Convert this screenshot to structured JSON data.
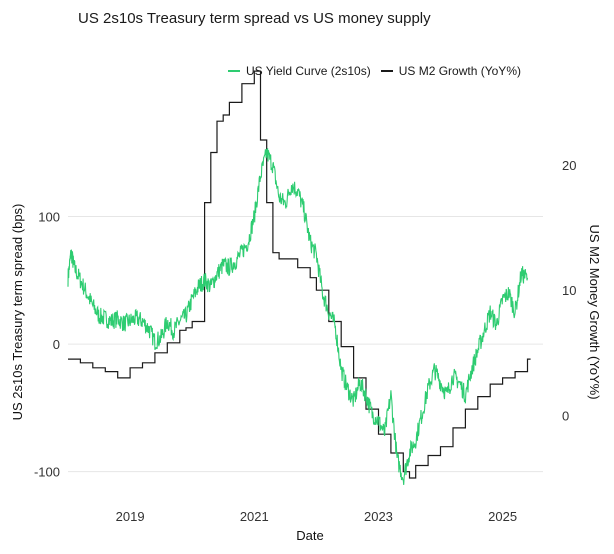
{
  "chart_data": {
    "type": "line",
    "title": "US 2s10s Treasury term spread vs US money supply",
    "xlabel": "Date",
    "ylabel_left": "US 2s10s Treasury term spread (bps)",
    "ylabel_right": "US M2 Money Growth (YoY%)",
    "x_ticks": [
      "2019",
      "2021",
      "2023",
      "2025"
    ],
    "y_left_ticks": [
      "-100",
      "0",
      "100"
    ],
    "y_right_ticks": [
      "0",
      "10",
      "20"
    ],
    "ylim_left": [
      -105,
      160
    ],
    "ylim_right": [
      -5,
      22
    ],
    "xlim": [
      2018.0,
      2025.65
    ],
    "grid": true,
    "legend_position": "top",
    "series": [
      {
        "name": "US Yield Curve (2s10s)",
        "color": "#2ecc71",
        "axis": "left",
        "x": [
          2018.0,
          2018.05,
          2018.1,
          2018.2,
          2018.3,
          2018.4,
          2018.5,
          2018.6,
          2018.7,
          2018.8,
          2018.9,
          2019.0,
          2019.1,
          2019.2,
          2019.3,
          2019.4,
          2019.5,
          2019.6,
          2019.7,
          2019.8,
          2019.9,
          2020.0,
          2020.1,
          2020.2,
          2020.3,
          2020.4,
          2020.5,
          2020.6,
          2020.7,
          2020.8,
          2020.9,
          2021.0,
          2021.1,
          2021.2,
          2021.3,
          2021.4,
          2021.5,
          2021.6,
          2021.7,
          2021.8,
          2021.9,
          2022.0,
          2022.1,
          2022.2,
          2022.3,
          2022.4,
          2022.5,
          2022.6,
          2022.7,
          2022.8,
          2022.9,
          2023.0,
          2023.1,
          2023.2,
          2023.3,
          2023.4,
          2023.5,
          2023.6,
          2023.7,
          2023.8,
          2023.9,
          2024.0,
          2024.1,
          2024.2,
          2024.3,
          2024.4,
          2024.5,
          2024.6,
          2024.7,
          2024.8,
          2024.9,
          2025.0,
          2025.1,
          2025.2,
          2025.3,
          2025.4
        ],
        "values": [
          52,
          72,
          60,
          50,
          40,
          30,
          22,
          20,
          18,
          20,
          16,
          18,
          20,
          18,
          12,
          2,
          5,
          18,
          10,
          18,
          22,
          35,
          45,
          50,
          45,
          55,
          62,
          60,
          65,
          72,
          80,
          100,
          132,
          150,
          140,
          115,
          110,
          125,
          120,
          105,
          80,
          70,
          40,
          25,
          15,
          -20,
          -35,
          -45,
          -30,
          -40,
          -55,
          -60,
          -70,
          -40,
          -90,
          -105,
          -85,
          -75,
          -55,
          -35,
          -20,
          -30,
          -40,
          -25,
          -30,
          -40,
          -20,
          -5,
          10,
          25,
          15,
          35,
          40,
          25,
          55,
          52
        ]
      },
      {
        "name": "US M2 Growth (YoY%)",
        "color": "#1a1a1a",
        "axis": "right",
        "x": [
          2018.0,
          2018.2,
          2018.4,
          2018.6,
          2018.8,
          2019.0,
          2019.2,
          2019.4,
          2019.6,
          2019.8,
          2019.9,
          2020.0,
          2020.2,
          2020.3,
          2020.4,
          2020.5,
          2020.6,
          2020.8,
          2021.0,
          2021.1,
          2021.2,
          2021.3,
          2021.4,
          2021.5,
          2021.7,
          2021.9,
          2022.0,
          2022.2,
          2022.4,
          2022.6,
          2022.8,
          2023.0,
          2023.2,
          2023.4,
          2023.5,
          2023.6,
          2023.8,
          2024.0,
          2024.2,
          2024.4,
          2024.6,
          2024.8,
          2025.0,
          2025.2,
          2025.4
        ],
        "values": [
          4.5,
          4.2,
          3.8,
          3.5,
          3.0,
          3.8,
          4.2,
          5.0,
          5.8,
          6.8,
          7.0,
          7.5,
          17.0,
          21.0,
          23.5,
          24.0,
          25.0,
          26.5,
          27.5,
          22.0,
          17.0,
          13.0,
          12.5,
          12.5,
          11.8,
          11.0,
          10.0,
          7.5,
          5.5,
          3.0,
          0.5,
          -1.5,
          -3.0,
          -4.5,
          -5.0,
          -4.0,
          -3.2,
          -2.5,
          -1.0,
          0.5,
          1.5,
          2.5,
          3.0,
          3.5,
          4.5
        ]
      }
    ]
  }
}
